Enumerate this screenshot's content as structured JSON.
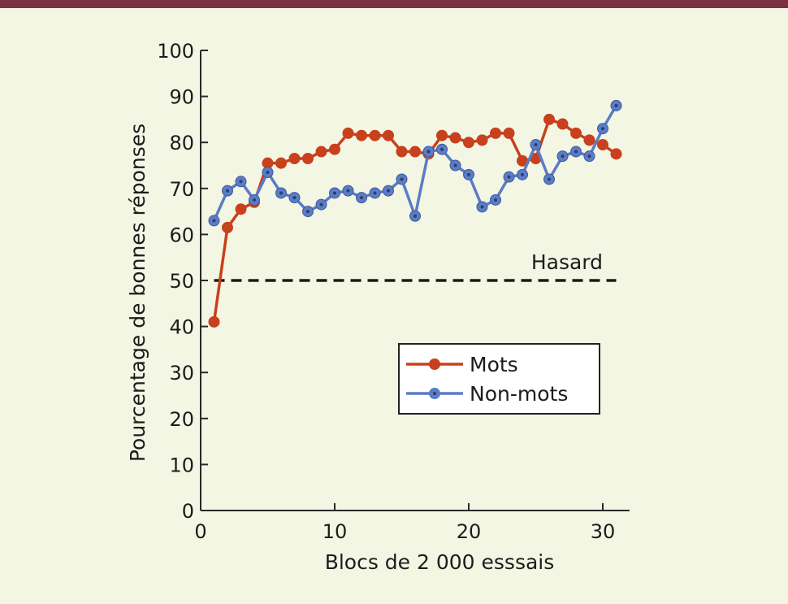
{
  "chart_data": {
    "type": "line",
    "title": "",
    "xlabel": "Blocs de 2 000 esssais",
    "ylabel": "Pourcentage de bonnes réponses",
    "xlim": [
      0,
      32
    ],
    "ylim": [
      0,
      100
    ],
    "xticks": [
      0,
      10,
      20,
      30
    ],
    "yticks": [
      0,
      10,
      20,
      30,
      40,
      50,
      60,
      70,
      80,
      90,
      100
    ],
    "grid": false,
    "legend_position": "lower-right",
    "x": [
      1,
      2,
      3,
      4,
      5,
      6,
      7,
      8,
      9,
      10,
      11,
      12,
      13,
      14,
      15,
      16,
      17,
      18,
      19,
      20,
      21,
      22,
      23,
      24,
      25,
      26,
      27,
      28,
      29,
      30,
      31
    ],
    "series": [
      {
        "name": "Mots",
        "color": "#c8401c",
        "values": [
          41,
          61.5,
          65.5,
          67,
          75.5,
          75.5,
          76.5,
          76.5,
          78,
          78.5,
          82,
          81.5,
          81.5,
          81.5,
          78,
          78,
          77.5,
          81.5,
          81,
          80,
          80.5,
          82,
          82,
          76,
          76.5,
          85,
          84,
          82,
          80.5,
          79.5,
          77.5
        ]
      },
      {
        "name": "Non-mots",
        "color": "#5b7cc6",
        "values": [
          63,
          69.5,
          71.5,
          67.5,
          73.5,
          69,
          68,
          65,
          66.5,
          69,
          69.5,
          68,
          69,
          69.5,
          72,
          64,
          78,
          78.5,
          75,
          73,
          66,
          67.5,
          72.5,
          73,
          79.5,
          72,
          77,
          78,
          77,
          83,
          88
        ]
      }
    ],
    "reference_line": {
      "value": 50,
      "label": "Hasard"
    }
  },
  "colors": {
    "background": "#f4f6e4",
    "top_bar": "#7a3040",
    "axis": "#2a2a2a",
    "chance_line": "#1a1a1a"
  }
}
